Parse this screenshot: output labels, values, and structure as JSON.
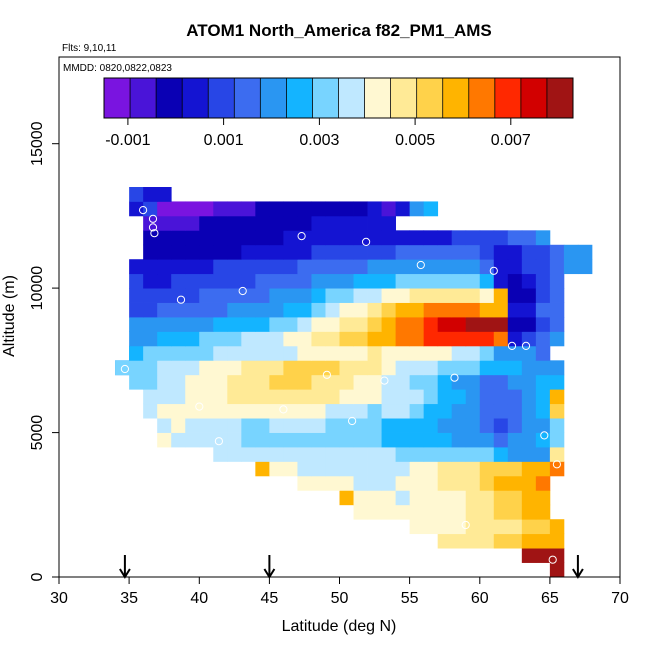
{
  "chart_data": {
    "type": "heatmap",
    "title": "ATOM1 North_America f82_PM1_AMS",
    "notes": {
      "flights": "Flts: 9,10,11",
      "dates": "MMDD: 0820,0822,0823"
    },
    "xlabel": "Latitude (deg N)",
    "ylabel": "Altitude (m)",
    "xlim": [
      30,
      70
    ],
    "ylim": [
      0,
      18000
    ],
    "x_ticks": [
      30,
      35,
      40,
      45,
      50,
      55,
      60,
      65,
      70
    ],
    "x_tick_labels": [
      "30",
      "35",
      "40",
      "45",
      "50",
      "55",
      "60",
      "65",
      "70"
    ],
    "y_ticks": [
      0,
      5000,
      10000,
      15000
    ],
    "y_tick_labels": [
      "0",
      "5000",
      "10000",
      "15000"
    ],
    "cell_size": {
      "lat_deg": 1,
      "alt_m": 500
    },
    "colorbar": {
      "range": [
        -0.0015,
        0.0083
      ],
      "tick_values": [
        -0.001,
        0.001,
        0.003,
        0.005,
        0.007
      ],
      "tick_labels": [
        "-0.001",
        "0.001",
        "0.003",
        "0.005",
        "0.007"
      ],
      "colors": [
        "#7a14e0",
        "#4a14d8",
        "#0a00b4",
        "#1414d2",
        "#2846e6",
        "#3c6cf0",
        "#2a96f2",
        "#14b4ff",
        "#78d4ff",
        "#bfe8ff",
        "#fff8d2",
        "#ffea96",
        "#ffd24a",
        "#ffb400",
        "#ff7800",
        "#ff2800",
        "#d20000",
        "#a01414"
      ]
    },
    "arrows_lat": [
      34.7,
      45.0,
      67.0
    ],
    "profiles": [
      {
        "name": "profile-a",
        "row_alt_start": 7000,
        "rows": [
          {
            "lat0": 34,
            "v": [
              0.0021,
              0.0021
            ]
          },
          {
            "lat0": 35,
            "v": [
              0.0024,
              0.0026,
              0.0027
            ]
          }
        ]
      },
      {
        "name": "main",
        "row_alt_start": 0,
        "rows": [
          {
            "lat0": 65,
            "v": [
              0.0083
            ]
          },
          {
            "lat0": 63,
            "v": [
              0.008,
              0.0078,
              0.0079
            ]
          },
          {
            "lat0": 57,
            "v": [
              0.0047,
              0.0045,
              0.0047,
              0.005,
              0.0052,
              0.0054,
              0.0057,
              0.0058,
              0.0059
            ]
          },
          {
            "lat0": 55,
            "v": [
              0.004,
              0.0041,
              0.0042,
              0.0043,
              0.0045,
              0.0046,
              0.0048,
              0.005,
              0.0052,
              0.0055,
              0.0058
            ]
          },
          {
            "lat0": 51,
            "v": [
              0.0042,
              0.0041,
              0.0041,
              0.004,
              0.004,
              0.0041,
              0.0042,
              0.0044,
              0.0046,
              0.0048,
              0.0051,
              0.0054,
              0.0057,
              0.006
            ]
          },
          {
            "lat0": 50,
            "v": [
              0.0061,
              0.0041,
              0.004,
              0.004,
              0.0039,
              0.004,
              0.0041,
              0.0042,
              0.0044,
              0.0046,
              0.0049,
              0.0052,
              0.0055,
              0.0058,
              0.0061
            ]
          },
          {
            "lat0": 47,
            "v": [
              0.0042,
              0.0041,
              0.004,
              0.004,
              0.0039,
              0.0039,
              0.0039,
              0.004,
              0.0041,
              0.0043,
              0.0045,
              0.0047,
              0.005,
              0.0053,
              0.0056,
              0.0058,
              0.006,
              0.0063
            ]
          },
          {
            "lat0": 44,
            "v": [
              0.0059,
              0.0041,
              0.004,
              0.0038,
              0.0037,
              0.0036,
              0.0036,
              0.0036,
              0.0037,
              0.0038,
              0.0039,
              0.0041,
              0.0043,
              0.0045,
              0.0047,
              0.0049,
              0.0051,
              0.0053,
              0.0055,
              0.0058,
              0.0061,
              0.0065
            ]
          },
          {
            "lat0": 41,
            "v": [
              0.0036,
              0.0036,
              0.0035,
              0.0035,
              0.0034,
              0.0034,
              0.0034,
              0.0034,
              0.0034,
              0.0034,
              0.0034,
              0.0034,
              0.0034,
              0.0033,
              0.0033,
              0.0033,
              0.0032,
              0.0031,
              0.003,
              0.0029,
              0.0026,
              0.0022,
              0.0021,
              0.0023,
              0.005
            ]
          },
          {
            "lat0": 37,
            "v": [
              0.004,
              0.0039,
              0.0037,
              0.0036,
              0.0035,
              0.0034,
              0.0033,
              0.0032,
              0.0032,
              0.0033,
              0.0033,
              0.0032,
              0.0032,
              0.0031,
              0.003,
              0.0029,
              0.0028,
              0.0027,
              0.0026,
              0.0025,
              0.0024,
              0.0022,
              0.002,
              0.0018,
              0.0016,
              0.0018,
              0.0021,
              0.0024,
              0.0031
            ]
          },
          {
            "lat0": 37,
            "v": [
              0.0039,
              0.004,
              0.0038,
              0.0036,
              0.0035,
              0.0034,
              0.0033,
              0.0033,
              0.0034,
              0.0035,
              0.0035,
              0.0034,
              0.0033,
              0.0032,
              0.0031,
              0.003,
              0.0028,
              0.0026,
              0.0025,
              0.0024,
              0.0023,
              0.0021,
              0.0018,
              0.0015,
              0.0012,
              0.0015,
              0.0018,
              0.0022,
              0.003
            ]
          },
          {
            "lat0": 36,
            "v": [
              0.0037,
              0.004,
              0.0041,
              0.0041,
              0.0042,
              0.0042,
              0.0043,
              0.0044,
              0.0044,
              0.0043,
              0.0043,
              0.0042,
              0.004,
              0.0038,
              0.0036,
              0.0034,
              0.0033,
              0.0034,
              0.0035,
              0.0031,
              0.0028,
              0.0025,
              0.0022,
              0.0018,
              0.0014,
              0.0013,
              0.0017,
              0.0021,
              0.0026,
              0.0055
            ]
          },
          {
            "lat0": 36,
            "v": [
              0.0035,
              0.0037,
              0.0039,
              0.0041,
              0.0043,
              0.0044,
              0.0046,
              0.0048,
              0.0049,
              0.005,
              0.005,
              0.0049,
              0.0047,
              0.0046,
              0.0044,
              0.0042,
              0.0041,
              0.0039,
              0.0037,
              0.0034,
              0.0031,
              0.0028,
              0.0024,
              0.002,
              0.0016,
              0.0014,
              0.0016,
              0.002,
              0.0025,
              0.0058
            ]
          },
          {
            "lat0": 35,
            "v": [
              0.0031,
              0.0033,
              0.0035,
              0.0037,
              0.004,
              0.0042,
              0.0044,
              0.0046,
              0.0048,
              0.005,
              0.0052,
              0.0053,
              0.0052,
              0.005,
              0.0048,
              0.0046,
              0.0043,
              0.0041,
              0.0038,
              0.0035,
              0.0032,
              0.0029,
              0.0026,
              0.0023,
              0.002,
              0.0017,
              0.0016,
              0.0018,
              0.0021,
              0.0024,
              0.0028
            ]
          },
          {
            "lat0": 34,
            "v": [
              0.0029,
              0.003,
              0.0032,
              0.0034,
              0.0036,
              0.0038,
              0.004,
              0.0042,
              0.0044,
              0.0046,
              0.0048,
              0.005,
              0.0051,
              0.0052,
              0.0052,
              0.0051,
              0.0049,
              0.0047,
              0.0045,
              0.0042,
              0.0039,
              0.0037,
              0.0035,
              0.0033,
              0.0031,
              0.0029,
              0.0027,
              0.0025,
              0.0024,
              0.0023,
              0.0022,
              0.0022
            ]
          },
          {
            "lat0": 35,
            "v": [
              0.0028,
              0.0029,
              0.003,
              0.0031,
              0.0032,
              0.0033,
              0.0034,
              0.0035,
              0.0036,
              0.0037,
              0.0038,
              0.0039,
              0.004,
              0.0041,
              0.0042,
              0.0043,
              0.0044,
              0.0045,
              0.0044,
              0.0043,
              0.0042,
              0.0041,
              0.004,
              0.0039,
              0.0036,
              0.003,
              0.0022,
              0.0019,
              0.0018,
              0.0017
            ]
          },
          {
            "lat0": 35,
            "v": [
              0.002,
              0.0022,
              0.0024,
              0.0026,
              0.0028,
              0.003,
              0.0031,
              0.0033,
              0.0034,
              0.0036,
              0.0038,
              0.004,
              0.0043,
              0.0046,
              0.0049,
              0.0052,
              0.0055,
              0.0058,
              0.0061,
              0.0063,
              0.0066,
              0.0068,
              0.007,
              0.0071,
              0.0072,
              0.007,
              0.0066,
              0.0005,
              0.001,
              0.0015,
              0.0018
            ]
          },
          {
            "lat0": 35,
            "v": [
              0.0018,
              0.0019,
              0.002,
              0.0021,
              0.0022,
              0.0023,
              0.0024,
              0.0025,
              0.0026,
              0.0028,
              0.003,
              0.0033,
              0.0036,
              0.004,
              0.0043,
              0.0046,
              0.005,
              0.0054,
              0.0058,
              0.0062,
              0.0066,
              0.007,
              0.0073,
              0.0076,
              0.0078,
              0.0079,
              0.0078,
              -0.0004,
              0.0,
              0.0012,
              0.0016
            ]
          },
          {
            "lat0": 35,
            "v": [
              0.0012,
              0.0012,
              0.0013,
              0.0014,
              0.0015,
              0.0016,
              0.0017,
              0.0018,
              0.0019,
              0.0021,
              0.0023,
              0.0025,
              0.0028,
              0.0032,
              0.0036,
              0.004,
              0.0044,
              0.0048,
              0.0052,
              0.0056,
              0.006,
              0.0063,
              0.0066,
              0.0066,
              0.0064,
              0.006,
              0.0058,
              0.0002,
              0.0003,
              0.0013,
              0.0017
            ]
          },
          {
            "lat0": 35,
            "v": [
              0.0008,
              0.0009,
              0.001,
              0.0011,
              0.0012,
              0.0013,
              0.0014,
              0.0015,
              0.0016,
              0.0017,
              0.0019,
              0.0021,
              0.0023,
              0.0026,
              0.0029,
              0.0032,
              0.0035,
              0.0038,
              0.0041,
              0.0044,
              0.0046,
              0.0048,
              0.005,
              0.005,
              0.0047,
              0.0042,
              0.0059,
              0.0,
              0.0001,
              0.001,
              0.0016
            ]
          },
          {
            "lat0": 35,
            "v": [
              0.0007,
              0.0006,
              0.0006,
              0.0007,
              0.0008,
              0.0009,
              0.001,
              0.0011,
              0.0012,
              0.0013,
              0.0014,
              0.0015,
              0.0016,
              0.0018,
              0.002,
              0.0022,
              0.0024,
              0.0026,
              0.0028,
              0.0029,
              0.003,
              0.0031,
              0.0032,
              0.0032,
              0.003,
              0.0027,
              0.0002,
              0.0001,
              0.0004,
              0.0009,
              0.0014
            ]
          },
          {
            "lat0": 35,
            "v": [
              0.0005,
              0.0004,
              0.0004,
              0.0004,
              0.0005,
              0.0006,
              0.0007,
              0.0008,
              0.0009,
              0.001,
              0.0011,
              0.0012,
              0.0013,
              0.0014,
              0.0015,
              0.0016,
              0.0017,
              0.0018,
              0.0019,
              0.0019,
              0.002,
              0.002,
              0.0021,
              0.0021,
              0.002,
              0.0015,
              0.0005,
              0.0005,
              0.0008,
              0.0011,
              0.0015,
              0.0019,
              0.0023
            ]
          },
          {
            "lat0": 36,
            "v": [
              -0.0003,
              -0.0002,
              -0.0002,
              -0.0001,
              0.0,
              0.0,
              0.0001,
              0.0002,
              0.0003,
              0.0004,
              0.0005,
              0.0006,
              0.0007,
              0.0008,
              0.0009,
              0.001,
              0.0011,
              0.0012,
              0.0013,
              0.0014,
              0.0015,
              0.0015,
              0.0015,
              0.0016,
              0.0008,
              0.0004,
              0.0006,
              0.0009,
              0.0012,
              0.0015,
              0.0019,
              0.0022
            ]
          },
          {
            "lat0": 36,
            "v": [
              -0.0003,
              -0.0003,
              -0.0002,
              -0.0002,
              -0.0001,
              -0.0001,
              0.0,
              0.0,
              0.0001,
              0.0001,
              0.0002,
              0.0002,
              0.0003,
              0.0003,
              0.0004,
              0.0004,
              0.0005,
              0.0005,
              0.0005,
              0.0006,
              0.0006,
              0.0006,
              0.0007,
              0.0007,
              0.0009,
              0.0011,
              0.0014,
              0.0017,
              0.002
            ]
          },
          {
            "lat0": 36,
            "v": [
              -0.0006,
              -0.0009,
              -0.0008,
              -0.0005,
              -0.0003,
              -0.0002,
              -0.0001,
              0.0,
              0.0,
              0.0,
              0.0001,
              0.0001,
              0.0002,
              0.0002,
              0.0003,
              0.0004,
              0.0005,
              0.0006
            ]
          },
          {
            "lat0": 35,
            "v": [
              0.0005,
              0.001,
              -0.0012,
              -0.0013,
              -0.0012,
              -0.001,
              -0.0008,
              -0.0006,
              -0.0005,
              -0.0004,
              -0.0003,
              -0.0002,
              -0.0001,
              -0.0001,
              0.0,
              0.0,
              0.0001,
              0.0002,
              -0.0005,
              0.0006,
              0.0018,
              0.0025
            ]
          },
          {
            "lat0": 35,
            "v": [
              0.001,
              0.0005,
              0.0004
            ]
          }
        ]
      }
    ],
    "samples": [
      [
        34.7,
        7200
      ],
      [
        35.2,
        11500
      ],
      [
        36.0,
        12700
      ],
      [
        36.7,
        12400
      ],
      [
        36.7,
        12100
      ],
      [
        36.8,
        11900
      ],
      [
        38.7,
        9600
      ],
      [
        40.0,
        5900
      ],
      [
        41.4,
        4700
      ],
      [
        43.1,
        9900
      ],
      [
        46.0,
        5800
      ],
      [
        47.3,
        11800
      ],
      [
        49.1,
        7000
      ],
      [
        50.9,
        5400
      ],
      [
        51.9,
        11600
      ],
      [
        53.2,
        6800
      ],
      [
        55.8,
        10800
      ],
      [
        58.2,
        6900
      ],
      [
        59.0,
        1800
      ],
      [
        61.0,
        10600
      ],
      [
        62.3,
        8000
      ],
      [
        63.3,
        8000
      ],
      [
        64.6,
        4900
      ],
      [
        65.2,
        600
      ],
      [
        65.5,
        3900
      ],
      [
        66.1,
        7800
      ],
      [
        69.9,
        10900
      ]
    ]
  }
}
